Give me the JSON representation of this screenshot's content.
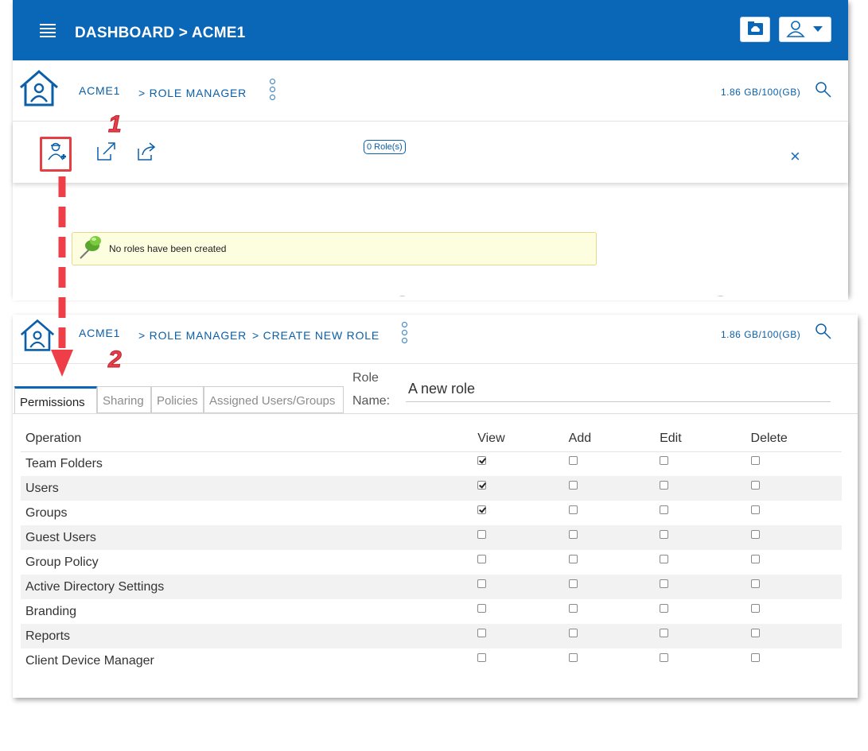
{
  "app": {
    "title": "DASHBOARD > ACME1",
    "cloud_icon": "cloud-folder-icon",
    "user_icon": "user-menu-icon"
  },
  "nav1": {
    "crumb_home": "ACME1",
    "crumb_page": "> ROLE MANAGER",
    "storage": "1.86 GB/100(GB)"
  },
  "toolbar": {
    "role_count": "0 Role(s)",
    "close_label": "×"
  },
  "annotations": {
    "step1": "1",
    "step2": "2"
  },
  "notice": {
    "text": "No roles have been created"
  },
  "nav2": {
    "crumb_home": "ACME1",
    "crumb_page": "> ROLE MANAGER",
    "crumb_sub": ">  CREATE NEW ROLE",
    "storage": "1.86 GB/100(GB)"
  },
  "tabs": [
    "Permissions",
    "Sharing",
    "Policies",
    "Assigned Users/Groups"
  ],
  "role": {
    "label_top": "Role",
    "label_bottom": "Name:",
    "value": "A new role"
  },
  "permissions": {
    "columns": [
      "Operation",
      "View",
      "Add",
      "Edit",
      "Delete"
    ],
    "rows": [
      {
        "name": "Team Folders",
        "view": true,
        "add": false,
        "edit": false,
        "delete": false
      },
      {
        "name": "Users",
        "view": true,
        "add": false,
        "edit": false,
        "delete": false
      },
      {
        "name": "Groups",
        "view": true,
        "add": false,
        "edit": false,
        "delete": false
      },
      {
        "name": "Guest Users",
        "view": false,
        "add": false,
        "edit": false,
        "delete": false
      },
      {
        "name": "Group Policy",
        "view": false,
        "add": false,
        "edit": false,
        "delete": false
      },
      {
        "name": "Active Directory Settings",
        "view": false,
        "add": false,
        "edit": false,
        "delete": false
      },
      {
        "name": "Branding",
        "view": false,
        "add": false,
        "edit": false,
        "delete": false
      },
      {
        "name": "Reports",
        "view": false,
        "add": false,
        "edit": false,
        "delete": false
      },
      {
        "name": "Client Device Manager",
        "view": false,
        "add": false,
        "edit": false,
        "delete": false
      }
    ]
  },
  "colors": {
    "brand": "#0a66b7",
    "link": "#0a5fa8",
    "annotation": "#e3404a"
  }
}
